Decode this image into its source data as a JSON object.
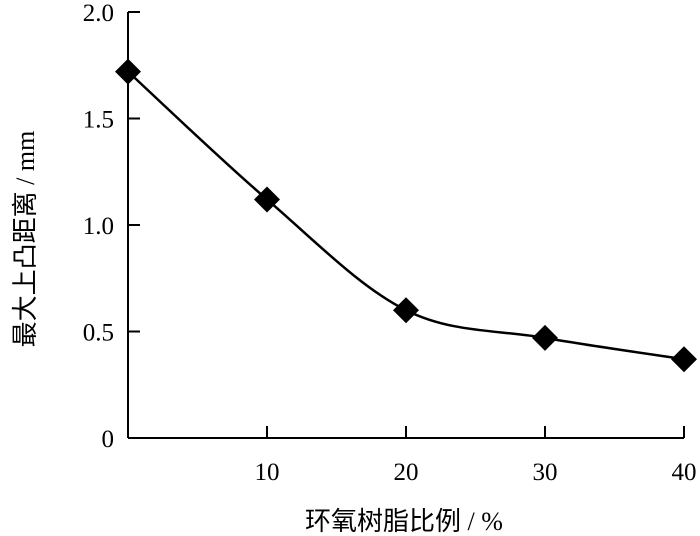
{
  "chart_data": {
    "type": "line",
    "title": "",
    "xlabel": "环氧树脂比例 / %",
    "ylabel": "最大上凸距离 / mm",
    "xlim": [
      0,
      40
    ],
    "ylim": [
      0,
      2.0
    ],
    "x_ticks": [
      10,
      20,
      30,
      40
    ],
    "x_tick_labels": [
      "10",
      "20",
      "30",
      "40"
    ],
    "y_ticks": [
      0,
      0.5,
      1.0,
      1.5,
      2.0
    ],
    "y_tick_labels": [
      "0",
      "0.5",
      "1.0",
      "1.5",
      "2.0"
    ],
    "grid": false,
    "legend": "none",
    "marker": "diamond",
    "line_style": "smooth",
    "color": "#000000",
    "series": [
      {
        "x": [
          0,
          10,
          20,
          30,
          40
        ],
        "values": [
          1.72,
          1.12,
          0.6,
          0.47,
          0.37
        ]
      }
    ]
  }
}
